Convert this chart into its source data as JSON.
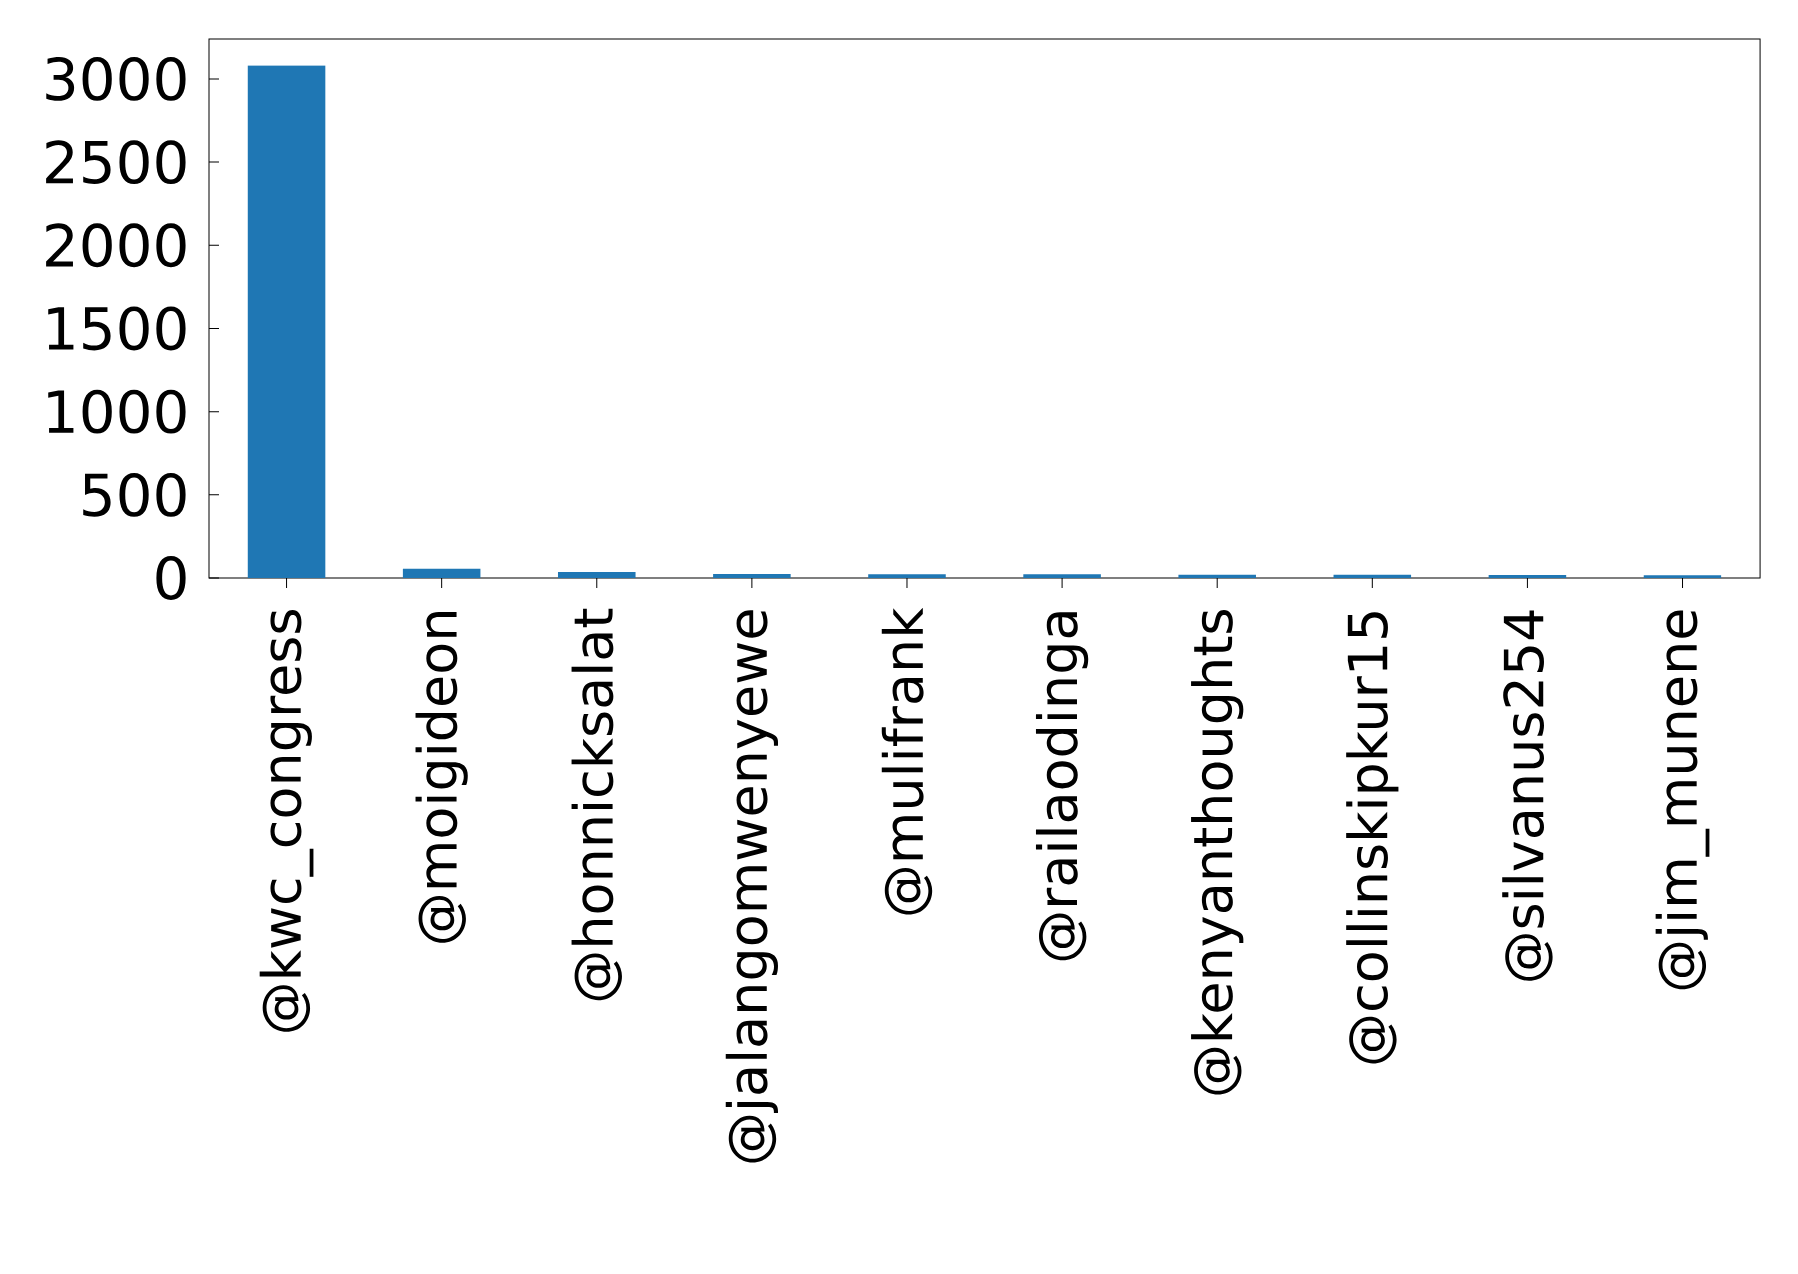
{
  "chart_data": {
    "type": "bar",
    "categories": [
      "@kwc_congress",
      "@moigideon",
      "@honnicksalat",
      "@jalangomwenyewe",
      "@mulifrank",
      "@railaodinga",
      "@kenyanthoughts",
      "@collinskipkur15",
      "@silvanus254",
      "@jim_munene"
    ],
    "values": [
      3080,
      55,
      36,
      24,
      23,
      23,
      19,
      19,
      18,
      17
    ],
    "color": "#1f77b4",
    "ylim": [
      0,
      3240
    ],
    "yticks": [
      0,
      500,
      1000,
      1500,
      2000,
      2500,
      3000
    ]
  }
}
